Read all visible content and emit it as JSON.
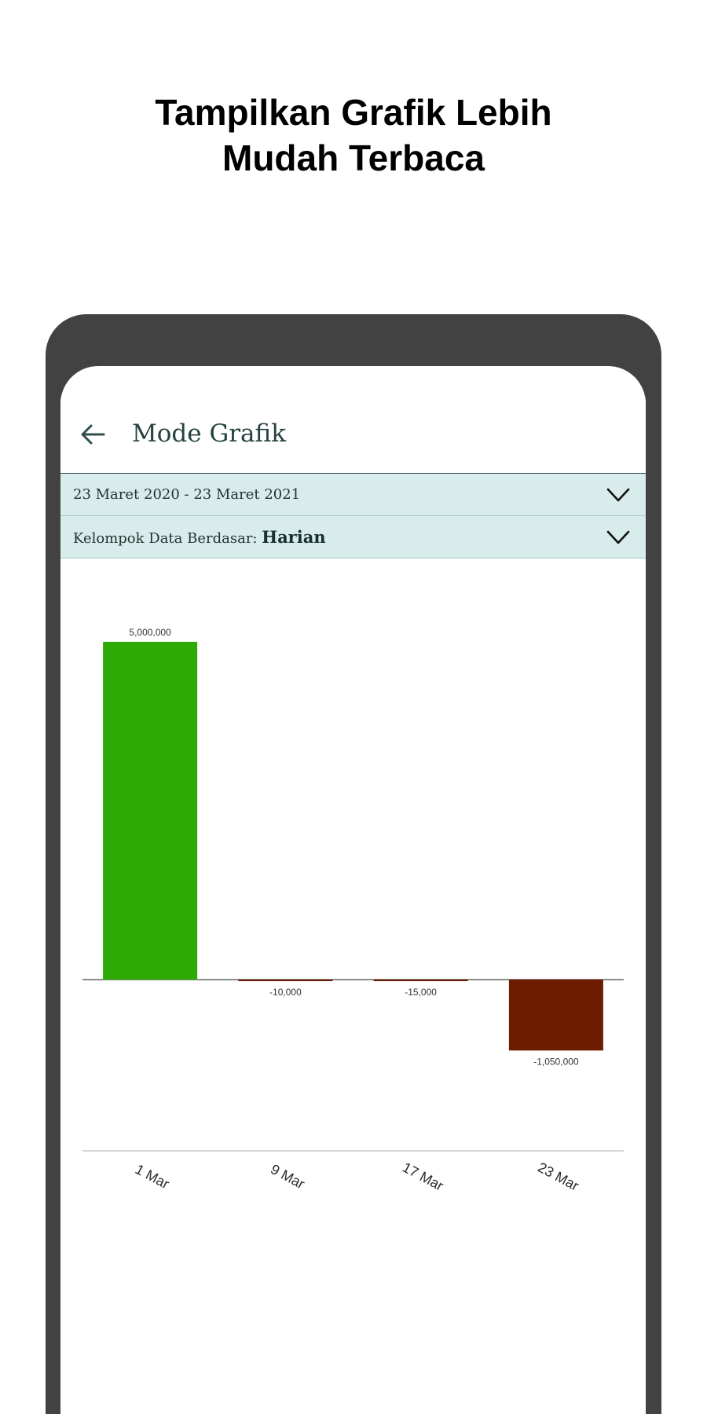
{
  "promo": {
    "headline_line1": "Tampilkan Grafik Lebih",
    "headline_line2": "Mudah Terbaca"
  },
  "app_bar": {
    "back_icon": "arrow-left-icon",
    "title": "Mode Grafik"
  },
  "filters": {
    "date_range": "23 Maret 2020 - 23 Maret 2021",
    "group_label": "Kelompok Data Berdasar:",
    "group_value": "Harian",
    "dropdown_icon": "chevron-down-icon"
  },
  "colors": {
    "positive": "#2eaa05",
    "negative": "#6d1c00",
    "frame": "#424242",
    "filter_bg": "#d8ecec",
    "title_text": "#24423f"
  },
  "chart_data": {
    "type": "bar",
    "categories": [
      "1 Mar",
      "9 Mar",
      "17 Mar",
      "23 Mar"
    ],
    "values": [
      5000000,
      -10000,
      -15000,
      -1050000
    ],
    "data_labels": [
      "5,000,000",
      "-10,000",
      "-15,000",
      "-1,050,000"
    ],
    "ylim": [
      -1650000,
      5000000
    ],
    "grid": false,
    "legend": "none"
  }
}
